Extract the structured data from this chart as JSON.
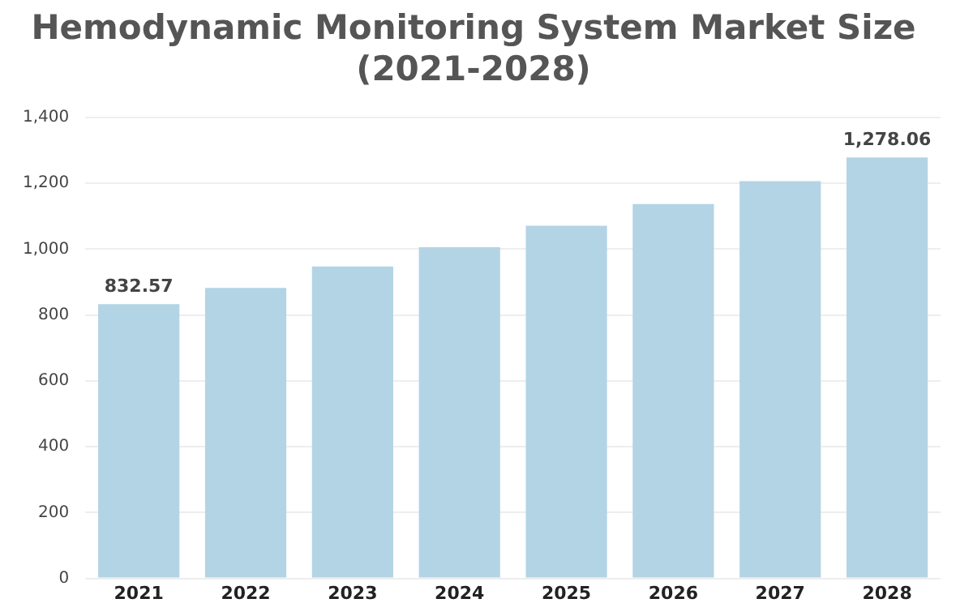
{
  "chart_data": {
    "type": "bar",
    "title": [
      "Hemodynamic Monitoring System Market Size",
      "(2021-2028)"
    ],
    "categories": [
      "2021",
      "2022",
      "2023",
      "2024",
      "2025",
      "2026",
      "2027",
      "2028"
    ],
    "values": [
      832.57,
      882,
      947,
      1006,
      1071,
      1137,
      1206,
      1278.06
    ],
    "value_labels": [
      "832.57",
      null,
      null,
      null,
      null,
      null,
      null,
      "1,278.06"
    ],
    "color": "#b3d4e5",
    "ylim": [
      0,
      1400
    ],
    "yticks": [
      0,
      {
        "value": 200,
        "label": "200"
      },
      {
        "value": 400,
        "label": "400"
      },
      {
        "value": 600,
        "label": "600"
      },
      {
        "value": 800,
        "label": "800"
      },
      {
        "value": 1000,
        "label": "1,000"
      },
      {
        "value": 1200,
        "label": "1,200"
      },
      {
        "value": 1400,
        "label": "1,400"
      }
    ],
    "grid": "y",
    "legend": false
  }
}
